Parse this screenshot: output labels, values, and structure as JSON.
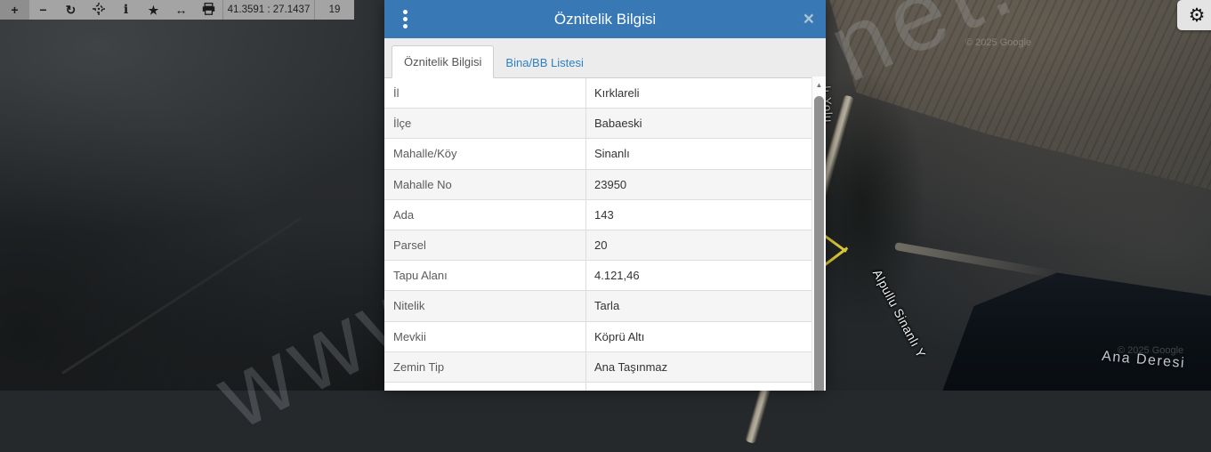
{
  "toolbar": {
    "coordinates": "41.3591 : 27.1437",
    "zoom_level": "19",
    "buttons": [
      {
        "name": "zoom-in",
        "glyph": "+"
      },
      {
        "name": "zoom-out",
        "glyph": "−"
      },
      {
        "name": "refresh",
        "glyph": "↻"
      },
      {
        "name": "locate",
        "glyph": ""
      },
      {
        "name": "info",
        "glyph": "i"
      },
      {
        "name": "favorites",
        "glyph": "★"
      },
      {
        "name": "measure",
        "glyph": "↔"
      },
      {
        "name": "print",
        "glyph": ""
      }
    ]
  },
  "settings": {
    "gear_glyph": "⚙"
  },
  "modal": {
    "title": "Öznitelik Bilgisi",
    "close_glyph": "×",
    "scroll_up_glyph": "▲",
    "tabs": [
      {
        "label": "Öznitelik Bilgisi",
        "active": true
      },
      {
        "label": "Bina/BB Listesi",
        "active": false
      }
    ],
    "rows": [
      {
        "label": "İl",
        "value": "Kırklareli"
      },
      {
        "label": "İlçe",
        "value": "Babaeski"
      },
      {
        "label": "Mahalle/Köy",
        "value": "Sinanlı"
      },
      {
        "label": "Mahalle No",
        "value": "23950"
      },
      {
        "label": "Ada",
        "value": "143"
      },
      {
        "label": "Parsel",
        "value": "20"
      },
      {
        "label": "Tapu Alanı",
        "value": "4.121,46"
      },
      {
        "label": "Nitelik",
        "value": "Tarla"
      },
      {
        "label": "Mevkii",
        "value": "Köprü Altı"
      },
      {
        "label": "Zemin Tip",
        "value": "Ana Taşınmaz"
      }
    ]
  },
  "map": {
    "labels": {
      "road_vertical_fragment": "lı Yolu",
      "road_diagonal": "Alpullu Sinanlı Y",
      "stream": "Ana Deresi",
      "copyright": "© 2025 Google"
    },
    "watermark": {
      "left_fragment": "www",
      "right_fragment": "net."
    }
  },
  "colors": {
    "header_blue": "#3879b5",
    "tab_link_blue": "#2e80c4",
    "parcel_outline_yellow": "#d8c53c",
    "toolbar_gray": "#a4a4a4"
  }
}
